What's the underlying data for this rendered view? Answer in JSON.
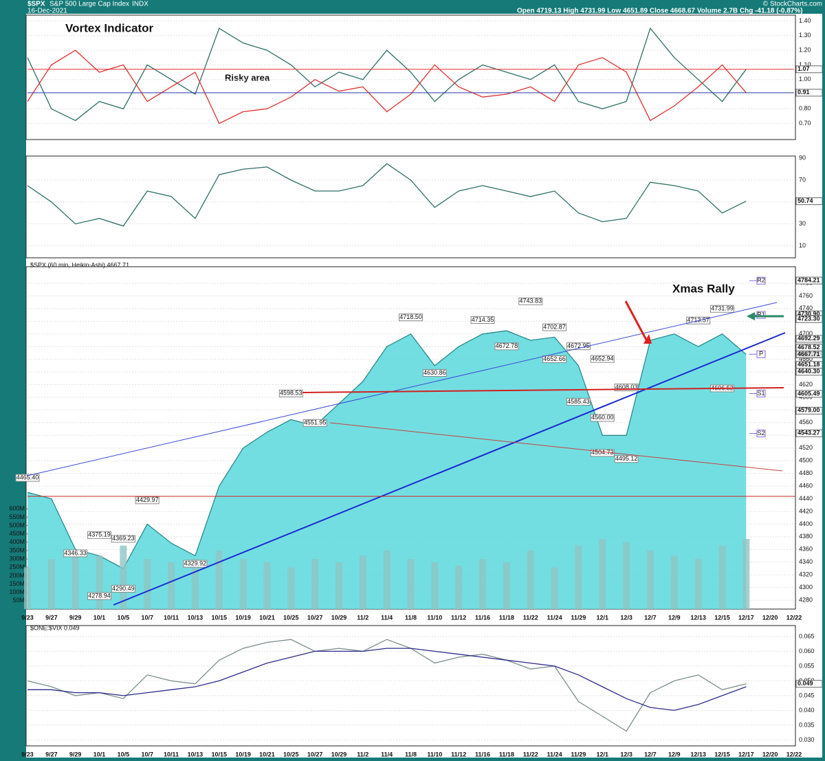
{
  "header": {
    "symbol": "$SPX",
    "name": "S&P 500 Large Cap Index",
    "exchange": "INDX",
    "date": "16-Dec-2021",
    "quote": "Open 4719.13  High 4731.99  Low 4651.89  Close 4668.67  Volume 2.7B  Chg -41.18 (-0.87%)",
    "credit": "© StockCharts.com"
  },
  "chart_data": [
    {
      "type": "line",
      "title": "Vortex Indicator",
      "annotation": "Risky area",
      "ylim": [
        0.59,
        1.44
      ],
      "yticks": [
        {
          "value": 0.7,
          "label": "0.70"
        },
        {
          "value": 0.8,
          "label": "0.80"
        },
        {
          "value": 0.9,
          "label": "0.90"
        },
        {
          "value": 1.0,
          "label": "1.00"
        },
        {
          "value": 1.1,
          "label": "1.10"
        },
        {
          "value": 1.2,
          "label": "1.20"
        },
        {
          "value": 1.3,
          "label": "1.30"
        },
        {
          "value": 1.4,
          "label": "1.40"
        }
      ],
      "tags": [
        {
          "value": 1.07,
          "label": "1.07",
          "color": "#e03030"
        },
        {
          "value": 0.91,
          "label": "0.91",
          "color": "#2a3aa8"
        }
      ],
      "series": [
        {
          "color": "#2e6e66",
          "values": [
            1.15,
            0.8,
            0.72,
            0.85,
            0.8,
            1.1,
            1.0,
            0.9,
            1.35,
            1.25,
            1.2,
            1.1,
            0.95,
            1.05,
            1.0,
            1.2,
            1.05,
            0.85,
            1.0,
            1.1,
            1.05,
            1.0,
            1.1,
            0.85,
            0.8,
            0.85,
            1.35,
            1.15,
            1.0,
            0.85,
            1.07,
            null,
            null
          ]
        },
        {
          "color": "#e03030",
          "values": [
            0.85,
            1.1,
            1.2,
            1.05,
            1.1,
            0.85,
            0.95,
            1.05,
            0.7,
            0.78,
            0.8,
            0.88,
            1.0,
            0.92,
            0.95,
            0.78,
            0.9,
            1.1,
            0.95,
            0.88,
            0.9,
            0.95,
            0.85,
            1.1,
            1.15,
            1.05,
            0.72,
            0.82,
            0.95,
            1.1,
            0.91,
            null,
            null
          ]
        }
      ]
    },
    {
      "type": "line",
      "ylim": [
        -1,
        92
      ],
      "yticks": [
        10,
        30,
        50,
        70,
        90
      ],
      "tags": [
        {
          "value": 50.74,
          "label": "50.74",
          "color": "#2e6e66"
        }
      ],
      "series": [
        {
          "color": "#2e6e66",
          "values": [
            65,
            50,
            30,
            35,
            28,
            60,
            55,
            35,
            75,
            80,
            82,
            70,
            60,
            60,
            65,
            85,
            70,
            45,
            60,
            65,
            60,
            55,
            60,
            40,
            32,
            35,
            68,
            65,
            60,
            40,
            50.74,
            null,
            null
          ]
        }
      ]
    },
    {
      "type": "area",
      "title": "$SPX (60 min, Heikin-Ashi) 4667.71",
      "annotation": "Xmas Rally",
      "categories": [
        "9/23",
        "9/27",
        "9/29",
        "10/1",
        "10/5",
        "10/7",
        "10/11",
        "10/13",
        "10/15",
        "10/19",
        "10/21",
        "10/25",
        "10/27",
        "10/29",
        "11/2",
        "11/4",
        "11/8",
        "11/10",
        "11/12",
        "11/16",
        "11/18",
        "11/22",
        "11/24",
        "11/29",
        "12/1",
        "12/3",
        "12/7",
        "12/9",
        "12/13",
        "12/15",
        "12/17",
        "12/20",
        "12/22"
      ],
      "ylim": [
        4266,
        4806
      ],
      "yticks": [
        4280,
        4300,
        4320,
        4340,
        4360,
        4380,
        4400,
        4420,
        4440,
        4460,
        4480,
        4500,
        4520,
        4540,
        4560,
        4580,
        4600,
        4620,
        4640,
        4660,
        4680,
        4700,
        4720,
        4740,
        4760,
        4780
      ],
      "y2lim": [
        0,
        2050
      ],
      "y2ticks": [
        {
          "value": 50,
          "label": "50M"
        },
        {
          "value": 100,
          "label": "100M"
        },
        {
          "value": 150,
          "label": "150M"
        },
        {
          "value": 200,
          "label": "200M"
        },
        {
          "value": 250,
          "label": "250M"
        },
        {
          "value": 300,
          "label": "300M"
        },
        {
          "value": 350,
          "label": "350M"
        },
        {
          "value": 400,
          "label": "400M"
        },
        {
          "value": 450,
          "label": "450M"
        },
        {
          "value": 500,
          "label": "500M"
        },
        {
          "value": 550,
          "label": "550M"
        },
        {
          "value": 600,
          "label": "600M"
        }
      ],
      "series": [
        {
          "color": "#2a8a8a",
          "values": [
            4450,
            4440,
            4360,
            4350,
            4330,
            4400,
            4370,
            4350,
            4460,
            4520,
            4545,
            4565,
            4555,
            4590,
            4625,
            4680,
            4700,
            4650,
            4680,
            4700,
            4705,
            4690,
            4695,
            4650,
            4540,
            4540,
            4690,
            4700,
            4680,
            4700,
            4667.71,
            null,
            null
          ]
        },
        {
          "axis": "y2",
          "color": "#8fc4c4",
          "values": [
            250,
            300,
            350,
            320,
            380,
            300,
            280,
            300,
            350,
            300,
            280,
            250,
            300,
            280,
            320,
            350,
            300,
            280,
            260,
            300,
            280,
            350,
            250,
            380,
            420,
            400,
            350,
            320,
            300,
            380,
            420,
            null,
            null
          ]
        }
      ],
      "tags": [
        {
          "value": 4784.21,
          "label": "4784.21",
          "color": "#fff"
        },
        {
          "value": 4730.9,
          "label": "4730.90",
          "color": "#fff"
        },
        {
          "value": 4723.3,
          "label": "4723.30",
          "color": "#fff"
        },
        {
          "value": 4692.29,
          "label": "4692.29",
          "color": "#fff"
        },
        {
          "value": 4678.52,
          "label": "4678.52",
          "color": "#fff"
        },
        {
          "value": 4667.71,
          "label": "4667.71",
          "color": "#ddd"
        },
        {
          "value": 4651.18,
          "label": "4651.18",
          "color": "#fff"
        },
        {
          "value": 4640.3,
          "label": "4640.30",
          "color": "#fff"
        },
        {
          "value": 4605.49,
          "label": "4605.49",
          "color": "#fff"
        },
        {
          "value": 4579.0,
          "label": "4579.00",
          "color": "#fff"
        },
        {
          "value": 4543.27,
          "label": "4543.27",
          "color": "#fff"
        }
      ],
      "pivots": [
        {
          "label": "R2",
          "value": 4784
        },
        {
          "label": "R1",
          "value": 4730
        },
        {
          "label": "P",
          "value": 4668
        },
        {
          "label": "S1",
          "value": 4606
        },
        {
          "label": "S2",
          "value": 4543
        }
      ],
      "annotations": [
        {
          "date": "9/23",
          "value": 4465.4,
          "label": "4465.40"
        },
        {
          "date": "9/29",
          "value": 4346.33,
          "label": "4346.33"
        },
        {
          "date": "10/1",
          "value": 4375.19,
          "label": "4375.19"
        },
        {
          "date": "10/5",
          "value": 4369.23,
          "label": "4369.23"
        },
        {
          "date": "10/1",
          "value": 4278.94,
          "label": "4278.94"
        },
        {
          "date": "10/5",
          "value": 4290.49,
          "label": "4290.49"
        },
        {
          "date": "10/7",
          "value": 4429.97,
          "label": "4429.97"
        },
        {
          "date": "10/13",
          "value": 4329.92,
          "label": "4329.92"
        },
        {
          "date": "10/25",
          "value": 4598.53,
          "label": "4598.53"
        },
        {
          "date": "10/27",
          "value": 4551.95,
          "label": "4551.95"
        },
        {
          "date": "11/8",
          "value": 4718.5,
          "label": "4718.50"
        },
        {
          "date": "11/10",
          "value": 4630.86,
          "label": "4630.86"
        },
        {
          "date": "11/16",
          "value": 4714.35,
          "label": "4714.35"
        },
        {
          "date": "11/18",
          "value": 4672.78,
          "label": "4672.78"
        },
        {
          "date": "11/22",
          "value": 4743.83,
          "label": "4743.83"
        },
        {
          "date": "11/24",
          "value": 4652.66,
          "label": "4652.66"
        },
        {
          "date": "11/24",
          "value": 4702.87,
          "label": "4702.87"
        },
        {
          "date": "11/29",
          "value": 4672.95,
          "label": "4672.95"
        },
        {
          "date": "11/29",
          "value": 4585.43,
          "label": "4585.43"
        },
        {
          "date": "12/1",
          "value": 4652.94,
          "label": "4652.94"
        },
        {
          "date": "12/3",
          "value": 4608.03,
          "label": "4608.03"
        },
        {
          "date": "12/1",
          "value": 4560.0,
          "label": "4560.00"
        },
        {
          "date": "12/1",
          "value": 4504.73,
          "label": "4504.73"
        },
        {
          "date": "12/3",
          "value": 4495.12,
          "label": "4495.12"
        },
        {
          "date": "12/13",
          "value": 4713.57,
          "label": "4713.57"
        },
        {
          "date": "12/15",
          "value": 4731.99,
          "label": "4731.99"
        },
        {
          "date": "12/15",
          "value": 4606.52,
          "label": "4606.52"
        }
      ]
    },
    {
      "type": "line",
      "title": "$ONE:$VIX 0.049",
      "categories": [
        "9/23",
        "9/27",
        "9/29",
        "10/1",
        "10/5",
        "10/7",
        "10/11",
        "10/13",
        "10/15",
        "10/19",
        "10/21",
        "10/25",
        "10/27",
        "10/29",
        "11/2",
        "11/4",
        "11/8",
        "11/10",
        "11/12",
        "11/16",
        "11/18",
        "11/22",
        "11/24",
        "11/29",
        "12/1",
        "12/3",
        "12/7",
        "12/9",
        "12/13",
        "12/15",
        "12/17",
        "12/20",
        "12/22"
      ],
      "ylim": [
        0.028,
        0.0687
      ],
      "yticks": [
        {
          "value": 0.03,
          "label": "0.030"
        },
        {
          "value": 0.035,
          "label": "0.035"
        },
        {
          "value": 0.04,
          "label": "0.040"
        },
        {
          "value": 0.045,
          "label": "0.045"
        },
        {
          "value": 0.05,
          "label": "0.050"
        },
        {
          "value": 0.055,
          "label": "0.055"
        },
        {
          "value": 0.06,
          "label": "0.060"
        },
        {
          "value": 0.065,
          "label": "0.065"
        }
      ],
      "tags": [
        {
          "value": 0.049,
          "label": "0.049",
          "color": "#fff"
        }
      ],
      "series": [
        {
          "color": "#7a8c8c",
          "values": [
            0.05,
            0.048,
            0.045,
            0.046,
            0.044,
            0.052,
            0.05,
            0.049,
            0.057,
            0.061,
            0.063,
            0.064,
            0.06,
            0.061,
            0.06,
            0.064,
            0.061,
            0.056,
            0.058,
            0.059,
            0.057,
            0.054,
            0.055,
            0.043,
            0.038,
            0.033,
            0.046,
            0.05,
            0.052,
            0.047,
            0.049,
            null,
            null
          ]
        },
        {
          "color": "#2a2a8a",
          "values": [
            0.047,
            0.047,
            0.046,
            0.046,
            0.045,
            0.046,
            0.047,
            0.048,
            0.05,
            0.053,
            0.056,
            0.058,
            0.06,
            0.06,
            0.06,
            0.061,
            0.061,
            0.06,
            0.059,
            0.058,
            0.057,
            0.056,
            0.055,
            0.052,
            0.048,
            0.044,
            0.041,
            0.04,
            0.042,
            0.045,
            0.048,
            null,
            null
          ]
        }
      ]
    }
  ]
}
